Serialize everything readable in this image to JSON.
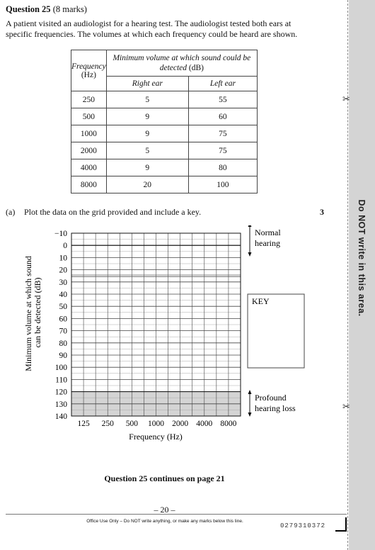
{
  "question": {
    "title": "Question 25",
    "marks_text": "(8 marks)",
    "intro": "A patient visited an audiologist for a hearing test. The audiologist tested both ears at specific frequencies. The volumes at which each frequency could be heard are shown."
  },
  "table": {
    "frequency_header": "Frequency",
    "frequency_unit": "(Hz)",
    "volume_header": "Minimum volume at which sound could be detected",
    "volume_unit": "(dB)",
    "right_ear": "Right ear",
    "left_ear": "Left ear",
    "rows": [
      {
        "frequency": "250",
        "right": "5",
        "left": "55"
      },
      {
        "frequency": "500",
        "right": "9",
        "left": "60"
      },
      {
        "frequency": "1000",
        "right": "9",
        "left": "75"
      },
      {
        "frequency": "2000",
        "right": "5",
        "left": "75"
      },
      {
        "frequency": "4000",
        "right": "9",
        "left": "80"
      },
      {
        "frequency": "8000",
        "right": "20",
        "left": "100"
      }
    ]
  },
  "part_a": {
    "label": "(a)",
    "text": "Plot the data on the grid provided and include a key.",
    "marks": "3"
  },
  "chart_data": {
    "type": "line",
    "xlabel": "Frequency (Hz)",
    "ylabel": "Minimum volume at which sound can be detected (dB)",
    "x_ticks": [
      "125",
      "250",
      "500",
      "1000",
      "2000",
      "4000",
      "8000"
    ],
    "y_ticks": [
      "−10",
      "0",
      "10",
      "20",
      "30",
      "40",
      "50",
      "60",
      "70",
      "80",
      "90",
      "100",
      "110",
      "120",
      "130",
      "140"
    ],
    "ylim": [
      -10,
      140
    ],
    "y_inverted": true,
    "grid": true,
    "series": [],
    "normal_band": [
      -10,
      25
    ],
    "profound_band": [
      120,
      140
    ],
    "profound_color": "#d4d4d4",
    "normal_label": "Normal hearing",
    "profound_label": "Profound hearing loss",
    "key_label": "KEY"
  },
  "footer": {
    "continues": "Question 25 continues on page 21",
    "page_number": "– 20 –",
    "office_use": "Office Use Only – Do NOT write anything, or make any marks below this line.",
    "barcode_number": "0279310372"
  },
  "margin": {
    "text": "Do NOT write in this area."
  }
}
